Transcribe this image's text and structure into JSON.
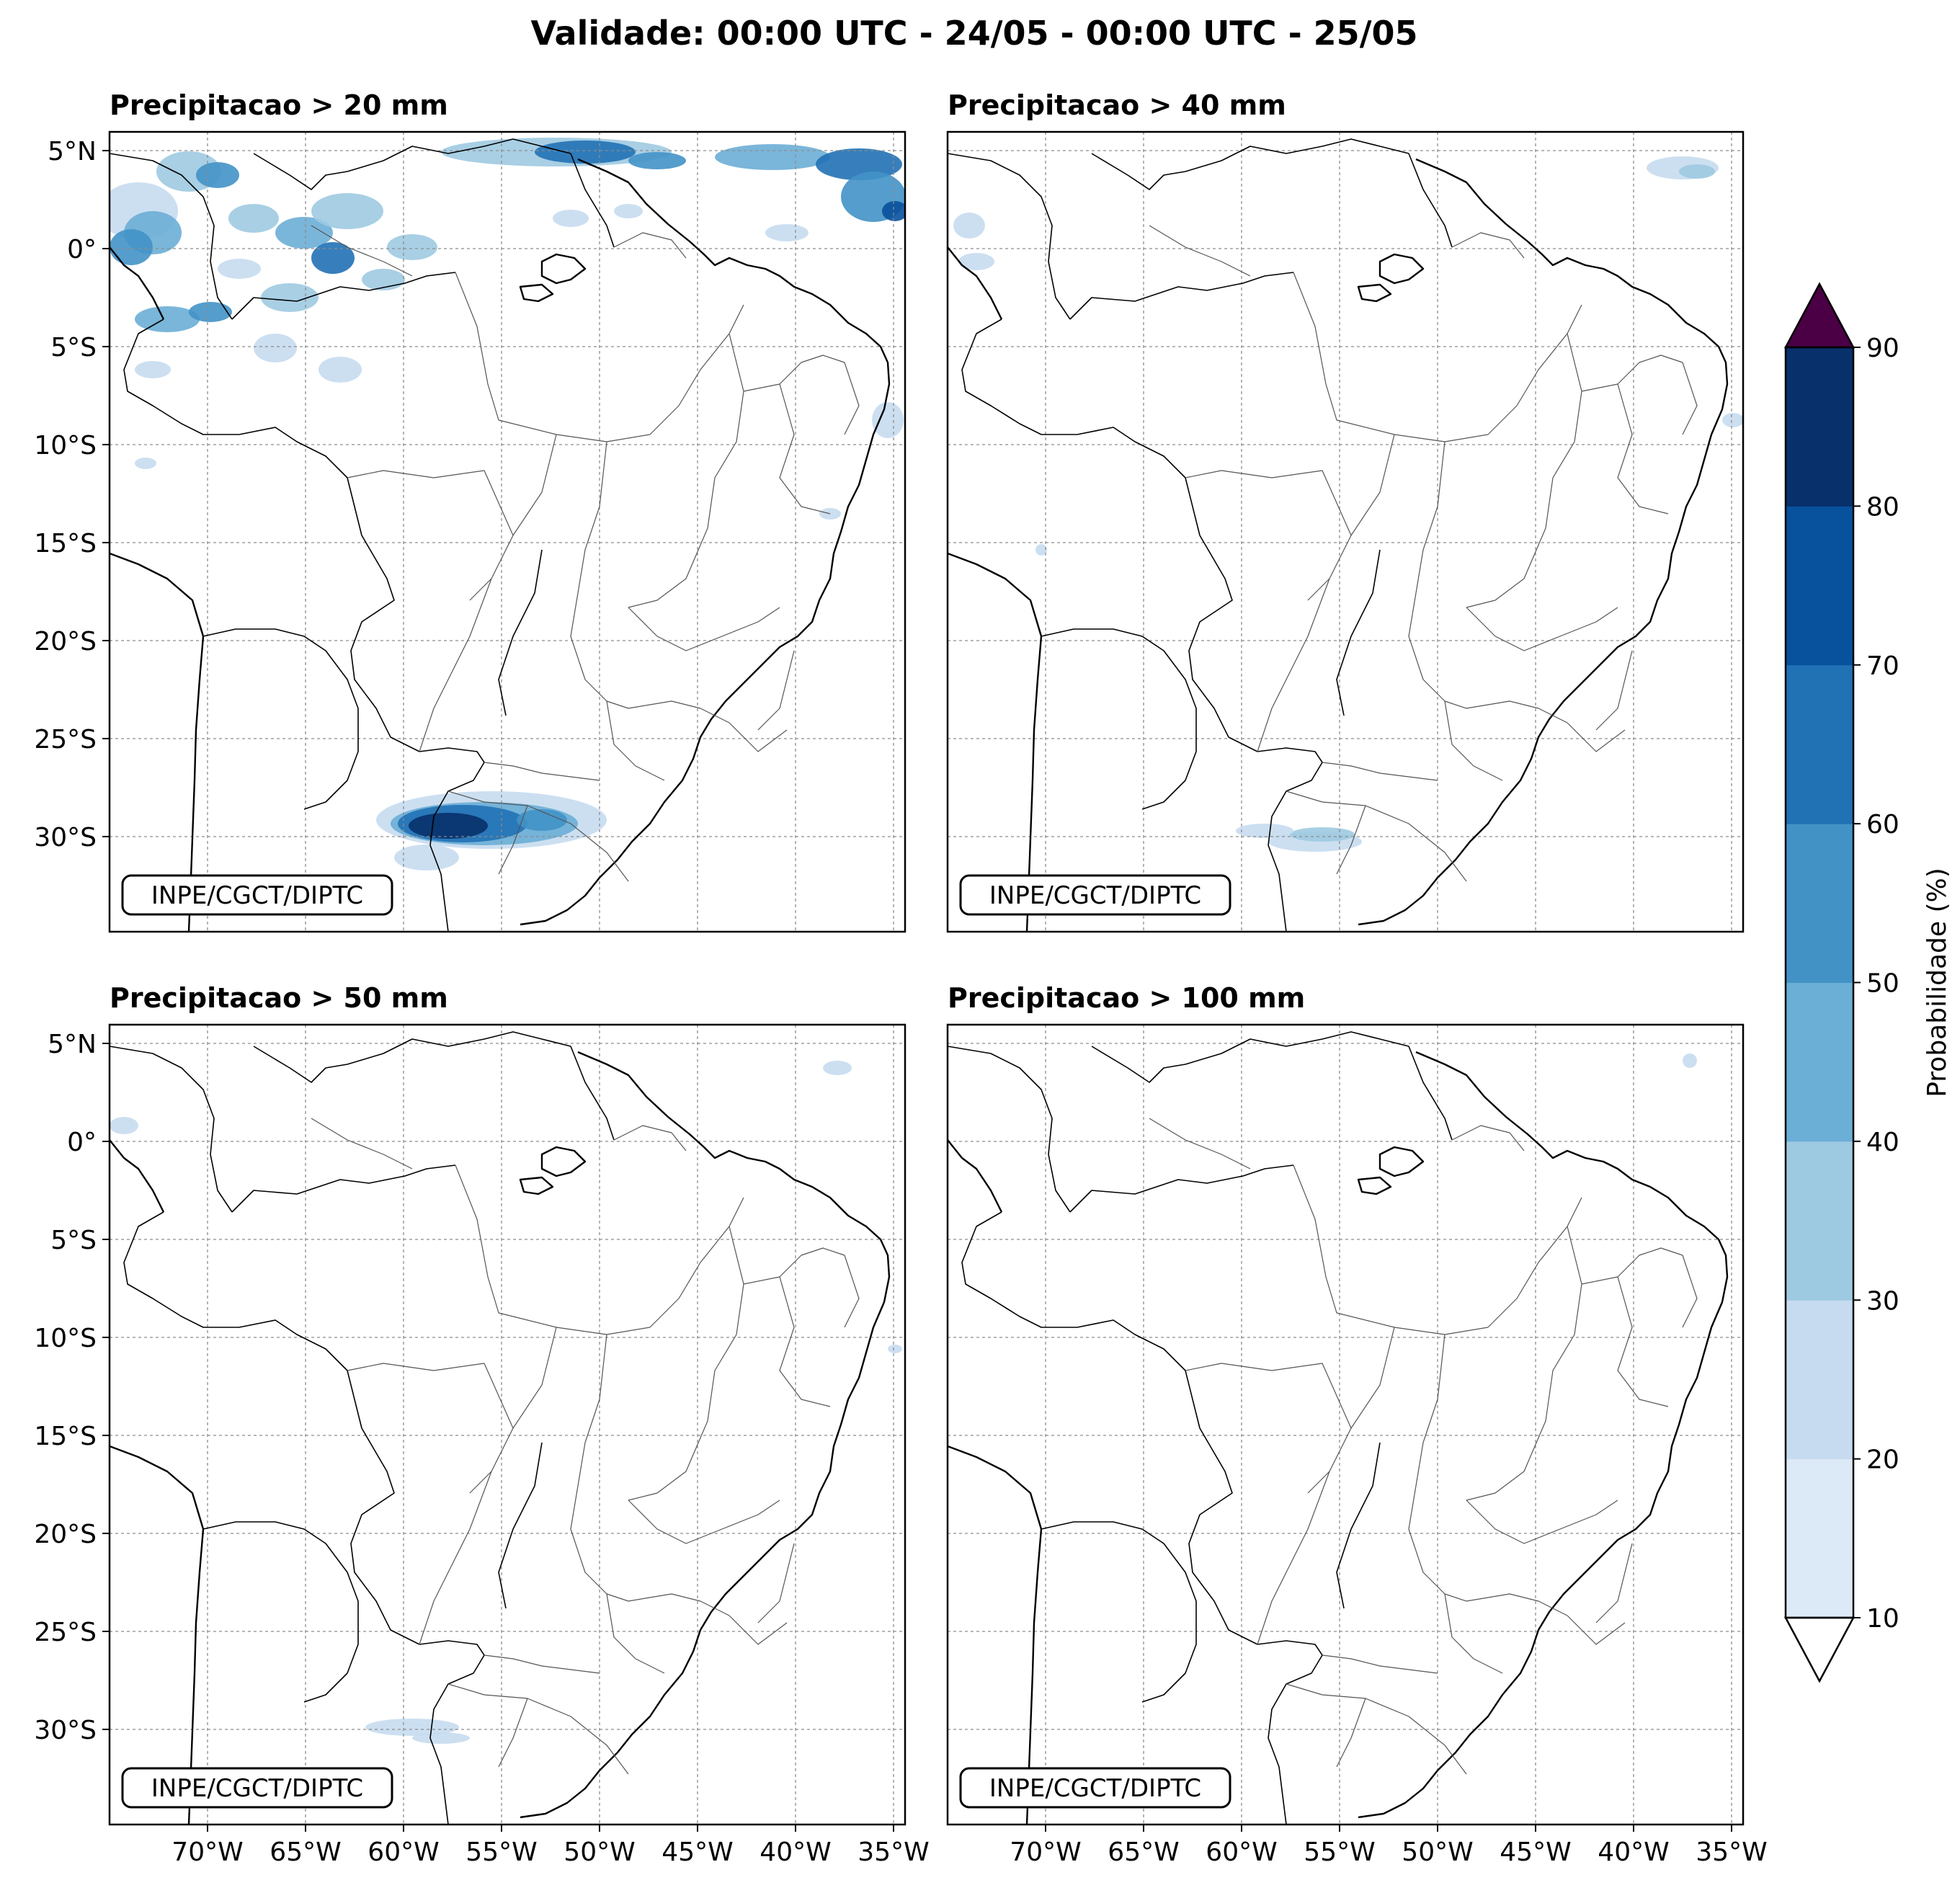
{
  "title": "Validade: 00:00 UTC - 24/05 - 00:00 UTC - 25/05",
  "credit": "INPE/CGCT/DIPTC",
  "lat_labels": [
    "5°N",
    "0°",
    "5°S",
    "10°S",
    "15°S",
    "20°S",
    "25°S",
    "30°S"
  ],
  "lon_labels": [
    "70°W",
    "65°W",
    "60°W",
    "55°W",
    "50°W",
    "45°W",
    "40°W",
    "35°W"
  ],
  "panels": [
    {
      "title": "Precipitacao > 20 mm"
    },
    {
      "title": "Precipitacao > 40 mm"
    },
    {
      "title": "Precipitacao > 50 mm"
    },
    {
      "title": "Precipitacao > 100 mm"
    }
  ],
  "colorbar": {
    "label": "Probabilidade (%)",
    "ticks": [
      "10",
      "20",
      "30",
      "40",
      "50",
      "60",
      "70",
      "80",
      "90"
    ],
    "colors": [
      "#dce9f6",
      "#c6dbef",
      "#9ecae1",
      "#6baed6",
      "#4292c6",
      "#2171b5",
      "#08519c",
      "#08306b"
    ],
    "over_color": "#4b0045"
  }
}
